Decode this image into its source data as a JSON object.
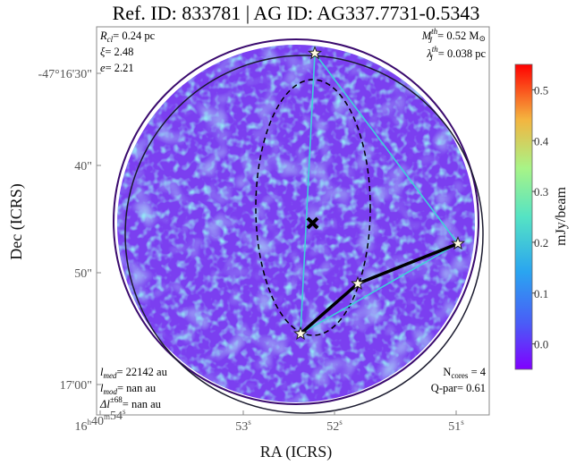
{
  "title": "Ref. ID: 833781 | AG ID: AG337.7731-0.5343",
  "axes": {
    "xlabel": "RA (ICRS)",
    "ylabel": "Dec (ICRS)",
    "x_ticks": [
      {
        "h": "16",
        "hs": "h",
        "m": "40",
        "ms": "m",
        "s": "54",
        "ss": "s"
      },
      {
        "h": "",
        "hs": "",
        "m": "",
        "ms": "",
        "s": "53",
        "ss": "s"
      },
      {
        "h": "",
        "hs": "",
        "m": "",
        "ms": "",
        "s": "52",
        "ss": "s"
      },
      {
        "h": "",
        "hs": "",
        "m": "",
        "ms": "",
        "s": "51",
        "ss": "s"
      }
    ],
    "y_ticks": [
      "-47°16'30\"",
      "40\"",
      "50\"",
      "17'00\""
    ]
  },
  "annotations": {
    "top_left": {
      "rcl_sym": "R",
      "rcl_sub": "cl",
      "rcl_val": "= 0.24 pc",
      "xi_sym": "ξ",
      "xi_val": "= 2.48",
      "e_sym": "e",
      "e_val": "= 2.21"
    },
    "top_right": {
      "mj_sym": "M",
      "mj_sub": "J",
      "mj_sup": "th",
      "mj_val": "= 0.52 M",
      "msun": "⊙",
      "lj_sym": "λ",
      "lj_sub": "J",
      "lj_sup": "th",
      "lj_val": "= 0.038 pc"
    },
    "bottom_left": {
      "lmed_sym": "l",
      "lmed_sub": "med",
      "lmed_val": "= 22142 au",
      "lmod_sym": "l",
      "lmod_sub": "mod",
      "lmod_val": "= nan au",
      "dl_sym": "Δl",
      "dl_sup": "±68",
      "dl_val": "= nan au"
    },
    "bottom_right": {
      "ncores_sym": "N",
      "ncores_sub": "cores",
      "ncores_val": " = 4",
      "qpar": "Q-par= 0.61"
    }
  },
  "colorbar": {
    "label": "mJy/beam",
    "ticks": [
      "0.0",
      "0.1",
      "0.2",
      "0.3",
      "0.4",
      "0.5"
    ],
    "tick_values": [
      0.0,
      0.1,
      0.2,
      0.3,
      0.4,
      0.5
    ],
    "range": [
      -0.05,
      0.55
    ],
    "colormap": "rainbow"
  },
  "colors": {
    "background_map": "#7b3ff0",
    "mst_light": "#3fd0d8",
    "mst_bold": "#000000",
    "circle_dark": "#1a1a2e",
    "circle_purple": "#3a0a6e",
    "star_fill": "#fffbe0"
  },
  "chart_data": {
    "type": "scatter",
    "title": "Ref. ID: 833781 | AG ID: AG337.7731-0.5343",
    "xlabel": "RA (ICRS)",
    "ylabel": "Dec (ICRS)",
    "series": [
      {
        "name": "cores",
        "x": [
          "16h40m52.5s",
          "16h40m51.5s",
          "16h40m52.2s",
          "16h40m52.6s"
        ],
        "y": [
          "-47°16'28\"",
          "-47°16'47\"",
          "-47°16'51\"",
          "-47°16'56\""
        ]
      },
      {
        "name": "center",
        "x": [
          "16h40m52.2s"
        ],
        "y": [
          "-47°16'45\""
        ]
      }
    ],
    "mst_edges_bold": [
      [
        1,
        2
      ],
      [
        2,
        3
      ]
    ],
    "mst_edges_light": [
      [
        0,
        1
      ],
      [
        0,
        3
      ],
      [
        1,
        3
      ]
    ],
    "grid": false
  }
}
